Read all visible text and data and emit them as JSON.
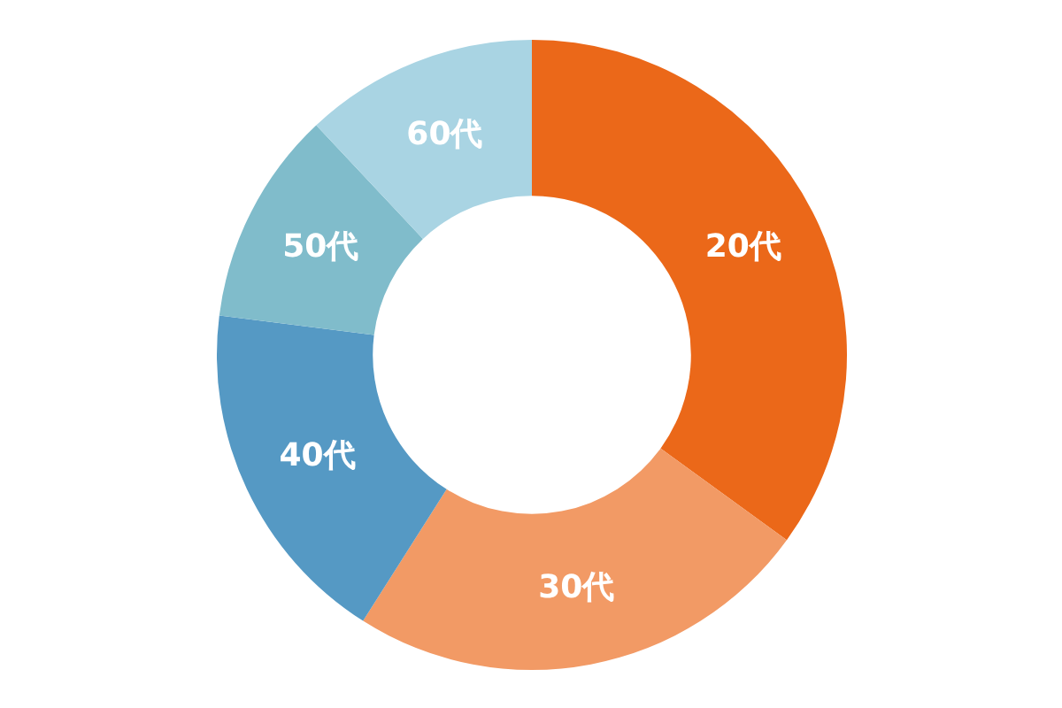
{
  "chart_data": {
    "type": "donut",
    "categories": [
      "20代",
      "30代",
      "40代",
      "50代",
      "60代"
    ],
    "values": [
      35,
      24,
      18,
      11,
      12
    ],
    "colors": [
      "#eb6819",
      "#f29a65",
      "#5599c4",
      "#80bccb",
      "#a9d4e3"
    ]
  }
}
